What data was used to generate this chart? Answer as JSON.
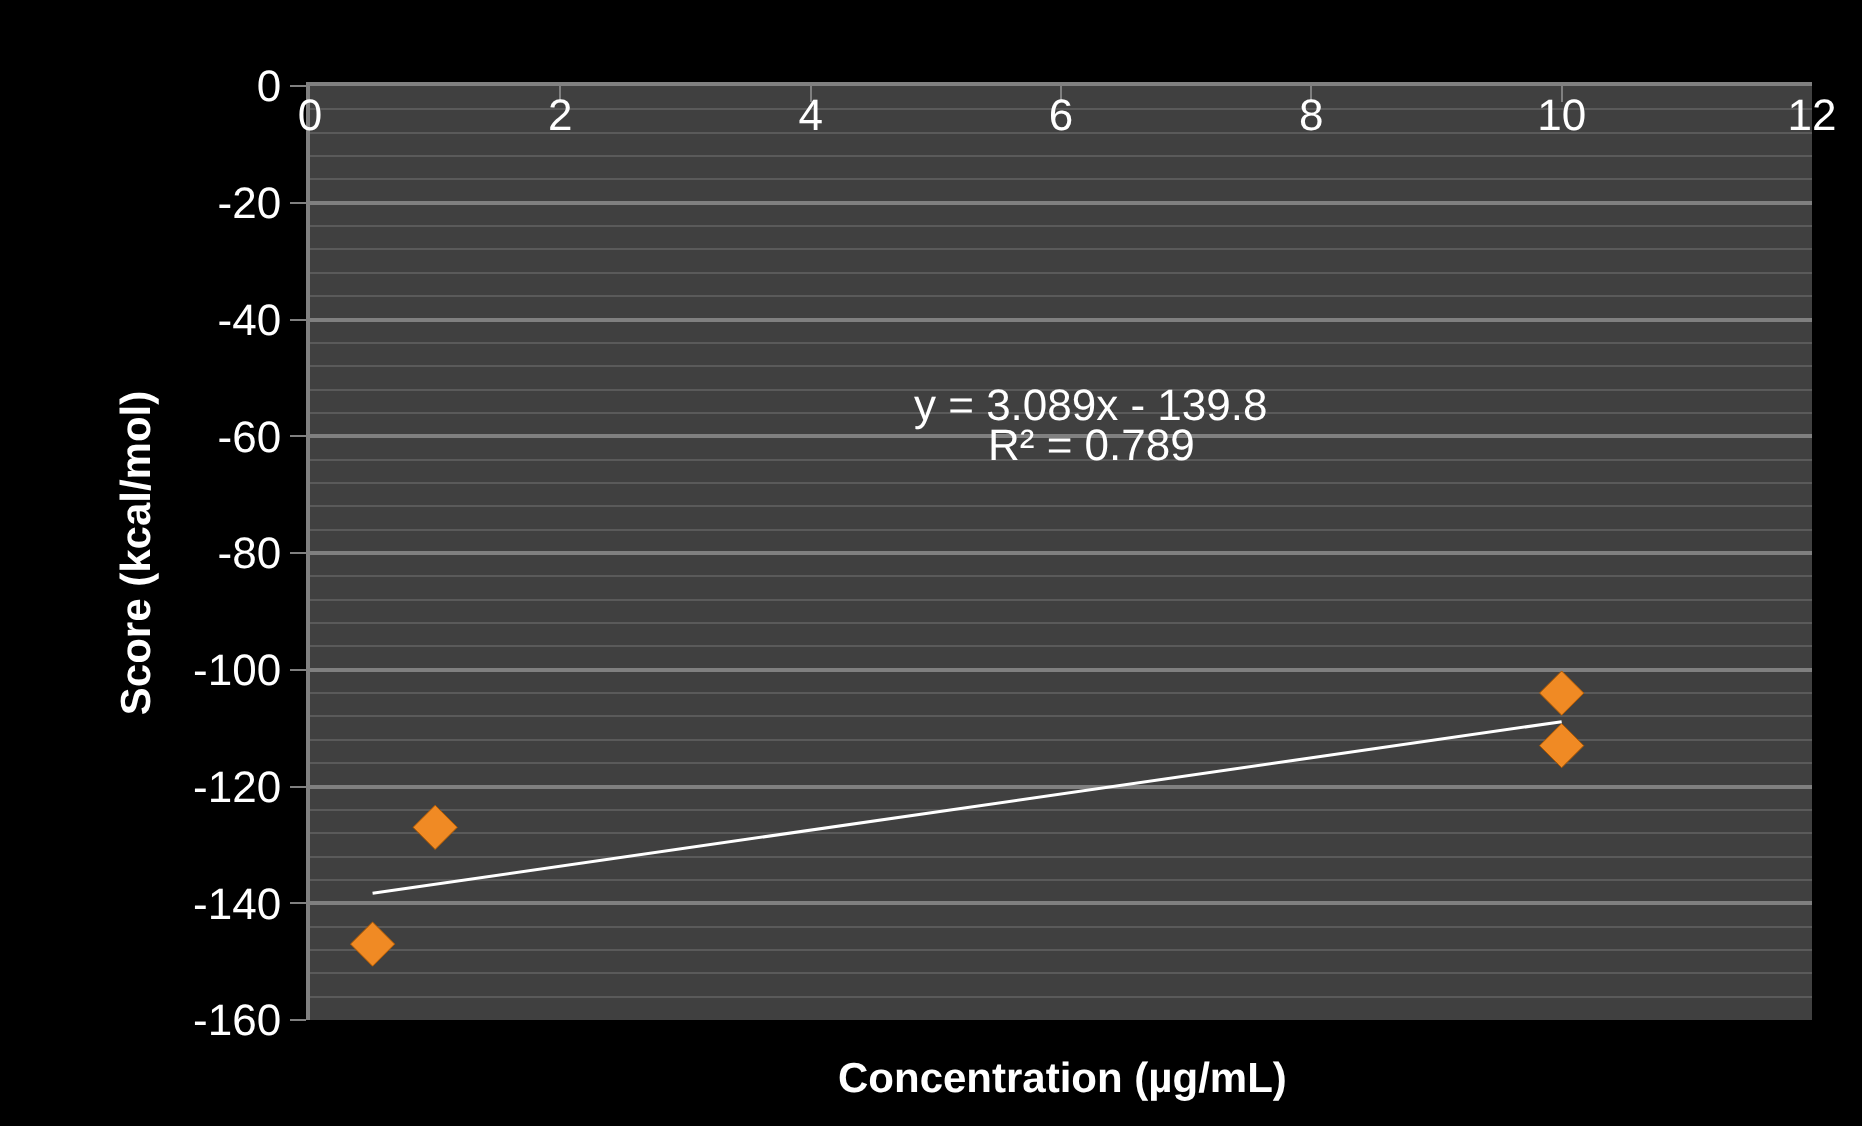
{
  "chart_data": {
    "type": "scatter",
    "xlabel": "Concentration (µg/mL)",
    "ylabel": "Score (kcal/mol)",
    "xlim": [
      0,
      12
    ],
    "xticks": [
      0,
      2,
      4,
      6,
      8,
      10,
      12
    ],
    "ylim": [
      -160,
      0
    ],
    "yticks": [
      -160,
      -140,
      -120,
      -100,
      -80,
      -60,
      -40,
      -20,
      0
    ],
    "grid": "y",
    "legend": false,
    "marker": "diamond",
    "series": [
      {
        "color": "#f08a24",
        "x": [
          0.5,
          1,
          10,
          10
        ],
        "values": [
          -147,
          -127,
          -104,
          -113
        ]
      },
      {
        "type": "line",
        "color": "#ffffff",
        "x": [
          0.5,
          10
        ],
        "values": [
          -138.3,
          -108.9
        ],
        "line_style": "solid",
        "marker": "none"
      }
    ],
    "annotations": [
      "y = 3.089x - 139.8",
      "R² = 0.789"
    ]
  }
}
